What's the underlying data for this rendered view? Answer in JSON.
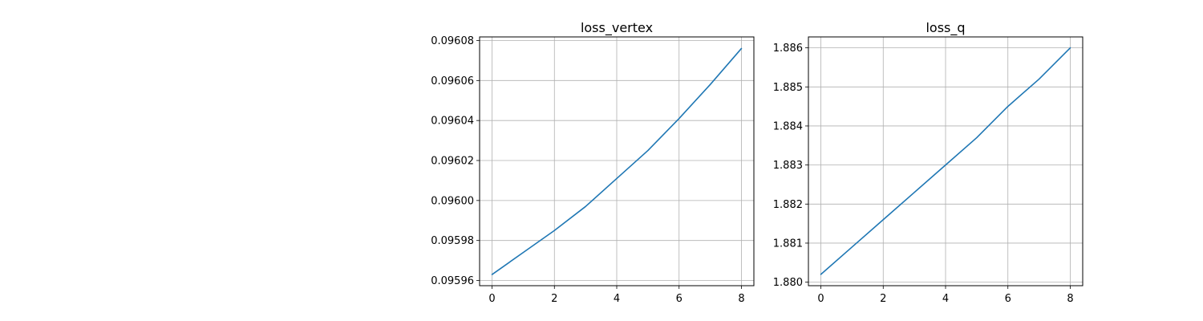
{
  "chart_data": [
    {
      "type": "line",
      "title": "loss_vertex",
      "xlabel": "",
      "ylabel": "",
      "x": [
        0,
        1,
        2,
        3,
        4,
        5,
        6,
        7,
        8
      ],
      "series": [
        {
          "values": [
            0.095963,
            0.095974,
            0.095985,
            0.095997,
            0.096011,
            0.096025,
            0.096041,
            0.096058,
            0.096076
          ],
          "color": "#1f77b4"
        }
      ],
      "xlim": [
        -0.4,
        8.4
      ],
      "ylim": [
        0.0959574,
        0.0960818
      ],
      "xticks": [
        0,
        2,
        4,
        6,
        8
      ],
      "xtick_labels": [
        "0",
        "2",
        "4",
        "6",
        "8"
      ],
      "yticks": [
        0.09596,
        0.09598,
        0.096,
        0.09602,
        0.09604,
        0.09606,
        0.09608
      ],
      "ytick_labels": [
        "0.09596",
        "0.09598",
        "0.09600",
        "0.09602",
        "0.09604",
        "0.09606",
        "0.09608"
      ],
      "grid": true
    },
    {
      "type": "line",
      "title": "loss_q",
      "xlabel": "",
      "ylabel": "",
      "x": [
        0,
        1,
        2,
        3,
        4,
        5,
        6,
        7,
        8
      ],
      "series": [
        {
          "values": [
            1.8802,
            1.8809,
            1.8816,
            1.8823,
            1.883,
            1.8837,
            1.8845,
            1.8852,
            1.886
          ],
          "color": "#1f77b4"
        }
      ],
      "xlim": [
        -0.4,
        8.4
      ],
      "ylim": [
        1.87991,
        1.88628
      ],
      "xticks": [
        0,
        2,
        4,
        6,
        8
      ],
      "xtick_labels": [
        "0",
        "2",
        "4",
        "6",
        "8"
      ],
      "yticks": [
        1.88,
        1.881,
        1.882,
        1.883,
        1.884,
        1.885,
        1.886
      ],
      "ytick_labels": [
        "1.880",
        "1.881",
        "1.882",
        "1.883",
        "1.884",
        "1.885",
        "1.886"
      ],
      "grid": true
    }
  ]
}
